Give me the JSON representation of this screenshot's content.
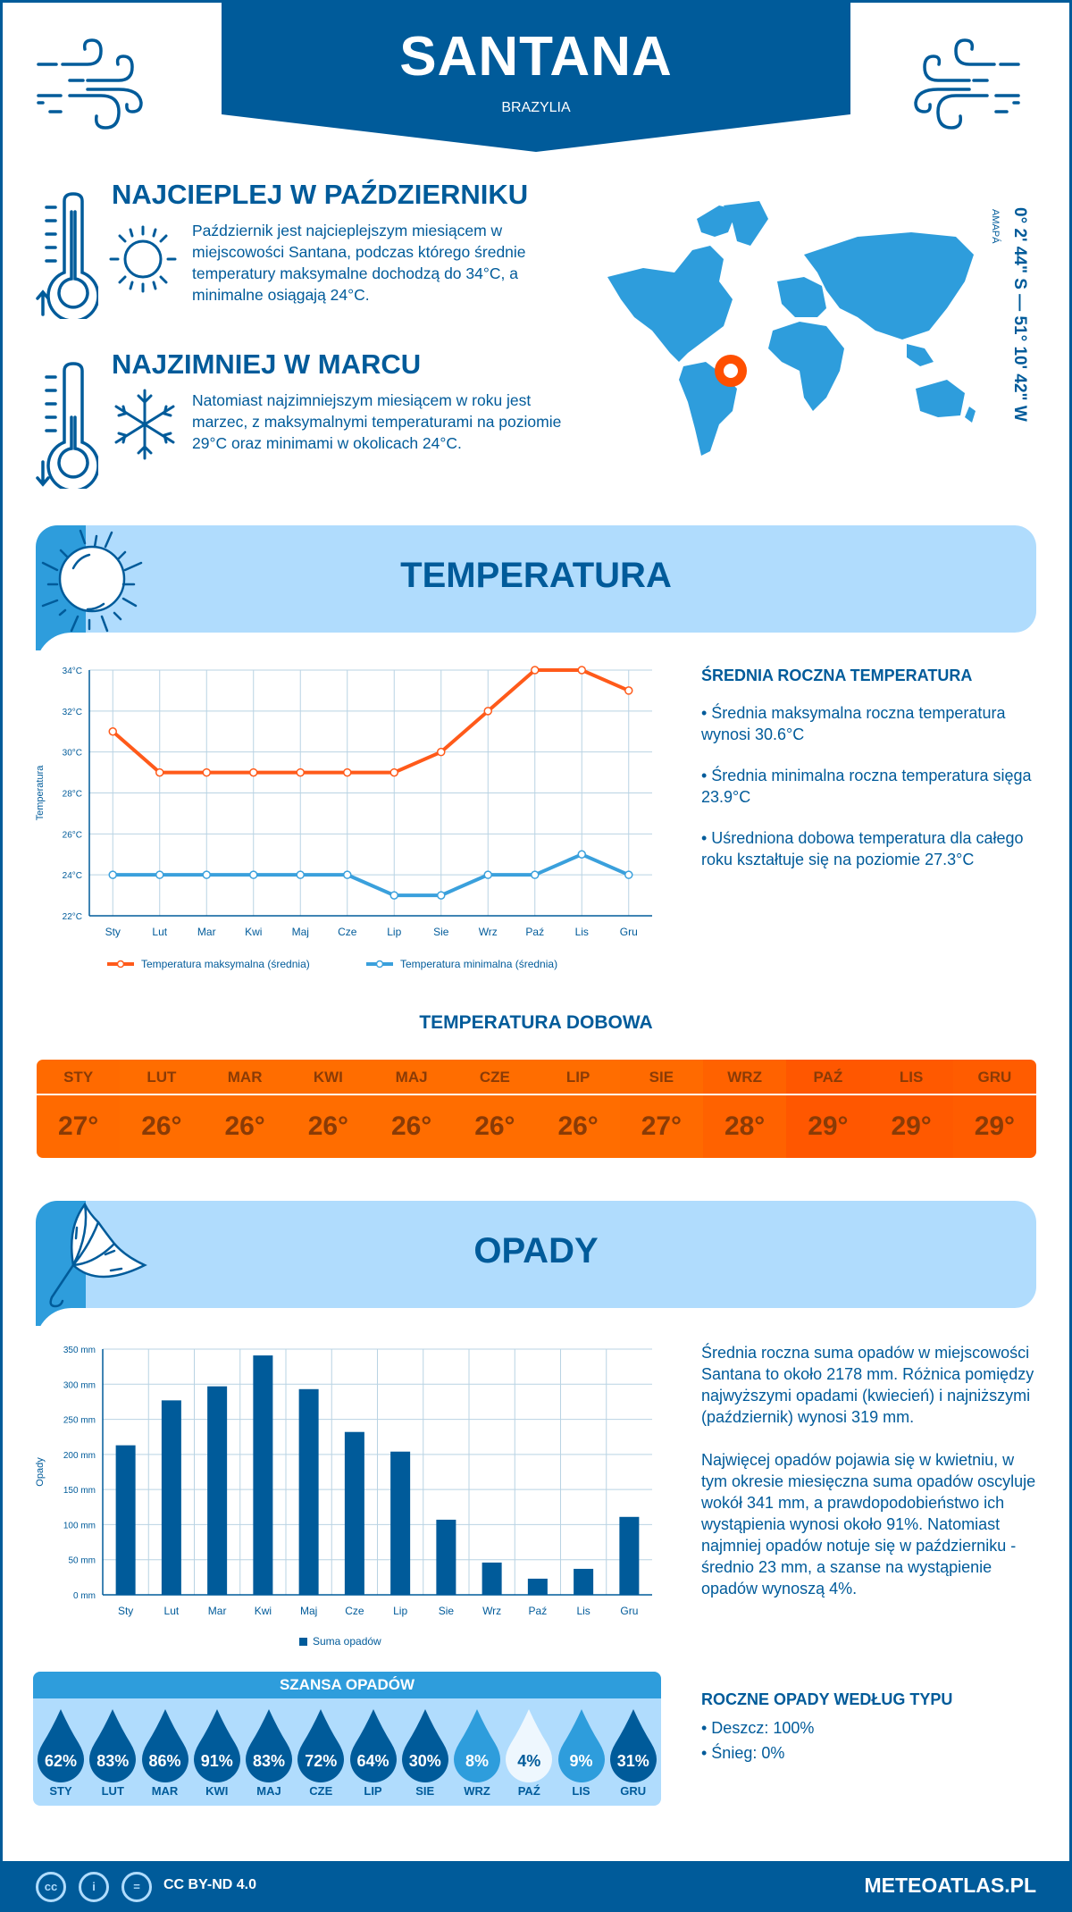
{
  "header": {
    "city": "SANTANA",
    "country": "BRAZYLIA"
  },
  "facts": {
    "warmest": {
      "title": "NAJCIEPLEJ W PAŹDZIERNIKU",
      "text": "Październik jest najcieplejszym miesiącem w miejscowości Santana, podczas którego średnie temperatury maksymalne dochodzą do 34°C, a minimalne osiągają 24°C."
    },
    "coldest": {
      "title": "NAJZIMNIEJ W MARCU",
      "text": "Natomiast najzimniejszym miesiącem w roku jest marzec, z maksymalnymi temperaturami na poziomie 29°C oraz minimami w okolicach 24°C."
    }
  },
  "location": {
    "coords": "0° 2' 44\" S — 51° 10' 42\" W",
    "region": "AMAPÁ",
    "marker_color": "#ff4f00"
  },
  "temperature_section": {
    "title": "TEMPERATURA",
    "summary_title": "ŚREDNIA ROCZNA TEMPERATURA",
    "bullets": [
      "• Średnia maksymalna roczna temperatura wynosi 30.6°C",
      "• Średnia minimalna roczna temperatura sięga 23.9°C",
      "• Uśredniona dobowa temperatura dla całego roku kształtuje się na poziomie 27.3°C"
    ],
    "daily_title": "TEMPERATURA DOBOWA",
    "daily": [
      {
        "month": "STY",
        "value": "27°",
        "color": "#ff6a00"
      },
      {
        "month": "LUT",
        "value": "26°",
        "color": "#ff6d00"
      },
      {
        "month": "MAR",
        "value": "26°",
        "color": "#ff6d00"
      },
      {
        "month": "KWI",
        "value": "26°",
        "color": "#ff6d00"
      },
      {
        "month": "MAJ",
        "value": "26°",
        "color": "#ff6d00"
      },
      {
        "month": "CZE",
        "value": "26°",
        "color": "#ff6d00"
      },
      {
        "month": "LIP",
        "value": "26°",
        "color": "#ff6d00"
      },
      {
        "month": "SIE",
        "value": "27°",
        "color": "#ff6a00"
      },
      {
        "month": "WRZ",
        "value": "28°",
        "color": "#ff6200"
      },
      {
        "month": "PAŹ",
        "value": "29°",
        "color": "#ff5700"
      },
      {
        "month": "LIS",
        "value": "29°",
        "color": "#ff5900"
      },
      {
        "month": "GRU",
        "value": "29°",
        "color": "#ff5c00"
      }
    ]
  },
  "precip_section": {
    "title": "OPADY",
    "paragraphs": [
      "Średnia roczna suma opadów w miejscowości Santana to około 2178 mm. Różnica pomiędzy najwyższymi opadami (kwiecień) i najniższymi (październik) wynosi 319 mm.",
      "Najwięcej opadów pojawia się w kwietniu, w tym okresie miesięczna suma opadów oscyluje wokół 341 mm, a prawdopodobieństwo ich wystąpienia wynosi około 91%. Natomiast najmniej opadów notuje się w październiku - średnio 23 mm, a szanse na wystąpienie opadów wynoszą 4%."
    ],
    "chance_title": "SZANSA OPADÓW",
    "chance": [
      {
        "month": "STY",
        "value": "62%",
        "color": "#005b9a",
        "text_color": "#ffffff"
      },
      {
        "month": "LUT",
        "value": "83%",
        "color": "#005b9a",
        "text_color": "#ffffff"
      },
      {
        "month": "MAR",
        "value": "86%",
        "color": "#005b9a",
        "text_color": "#ffffff"
      },
      {
        "month": "KWI",
        "value": "91%",
        "color": "#005b9a",
        "text_color": "#ffffff"
      },
      {
        "month": "MAJ",
        "value": "83%",
        "color": "#005b9a",
        "text_color": "#ffffff"
      },
      {
        "month": "CZE",
        "value": "72%",
        "color": "#005b9a",
        "text_color": "#ffffff"
      },
      {
        "month": "LIP",
        "value": "64%",
        "color": "#005b9a",
        "text_color": "#ffffff"
      },
      {
        "month": "SIE",
        "value": "30%",
        "color": "#005b9a",
        "text_color": "#ffffff"
      },
      {
        "month": "WRZ",
        "value": "8%",
        "color": "#2e9ddc",
        "text_color": "#ffffff"
      },
      {
        "month": "PAŹ",
        "value": "4%",
        "color": "#eef7fe",
        "text_color": "#005b9a"
      },
      {
        "month": "LIS",
        "value": "9%",
        "color": "#2e9ddc",
        "text_color": "#ffffff"
      },
      {
        "month": "GRU",
        "value": "31%",
        "color": "#005b9a",
        "text_color": "#ffffff"
      }
    ],
    "type_title": "ROCZNE OPADY WEDŁUG TYPU",
    "types": [
      "• Deszcz: 100%",
      "• Śnieg: 0%"
    ]
  },
  "footer": {
    "license": "CC BY-ND 4.0",
    "brand": "METEOATLAS.PL",
    "cc_icons": [
      "cc",
      "i",
      "="
    ]
  },
  "chart_data": [
    {
      "type": "line",
      "title": "",
      "xlabel": "",
      "ylabel": "Temperatura",
      "categories": [
        "Sty",
        "Lut",
        "Mar",
        "Kwi",
        "Maj",
        "Cze",
        "Lip",
        "Sie",
        "Wrz",
        "Paź",
        "Lis",
        "Gru"
      ],
      "ylim": [
        22,
        34
      ],
      "yticks": [
        22,
        24,
        26,
        28,
        30,
        32,
        34
      ],
      "ytick_labels": [
        "22°C",
        "24°C",
        "26°C",
        "28°C",
        "30°C",
        "32°C",
        "34°C"
      ],
      "grid": true,
      "legend": "bottom",
      "series": [
        {
          "name": "Temperatura maksymalna (średnia)",
          "color": "#ff5a1a",
          "values": [
            31,
            29,
            29,
            29,
            29,
            29,
            29,
            30,
            32,
            34,
            34,
            33
          ]
        },
        {
          "name": "Temperatura minimalna (średnia)",
          "color": "#3aa0dc",
          "values": [
            24,
            24,
            24,
            24,
            24,
            24,
            23,
            23,
            24,
            24,
            25,
            24
          ]
        }
      ]
    },
    {
      "type": "bar",
      "title": "",
      "xlabel": "",
      "ylabel": "Opady",
      "categories": [
        "Sty",
        "Lut",
        "Mar",
        "Kwi",
        "Maj",
        "Cze",
        "Lip",
        "Sie",
        "Wrz",
        "Paź",
        "Lis",
        "Gru"
      ],
      "ylim": [
        0,
        350
      ],
      "yticks": [
        0,
        50,
        100,
        150,
        200,
        250,
        300,
        350
      ],
      "ytick_labels": [
        "0 mm",
        "50 mm",
        "100 mm",
        "150 mm",
        "200 mm",
        "250 mm",
        "300 mm",
        "350 mm"
      ],
      "grid": true,
      "legend": "bottom",
      "series": [
        {
          "name": "Suma opadów",
          "color": "#005b9a",
          "values": [
            213,
            277,
            297,
            341,
            293,
            232,
            204,
            107,
            46,
            23,
            37,
            111
          ]
        }
      ]
    }
  ]
}
